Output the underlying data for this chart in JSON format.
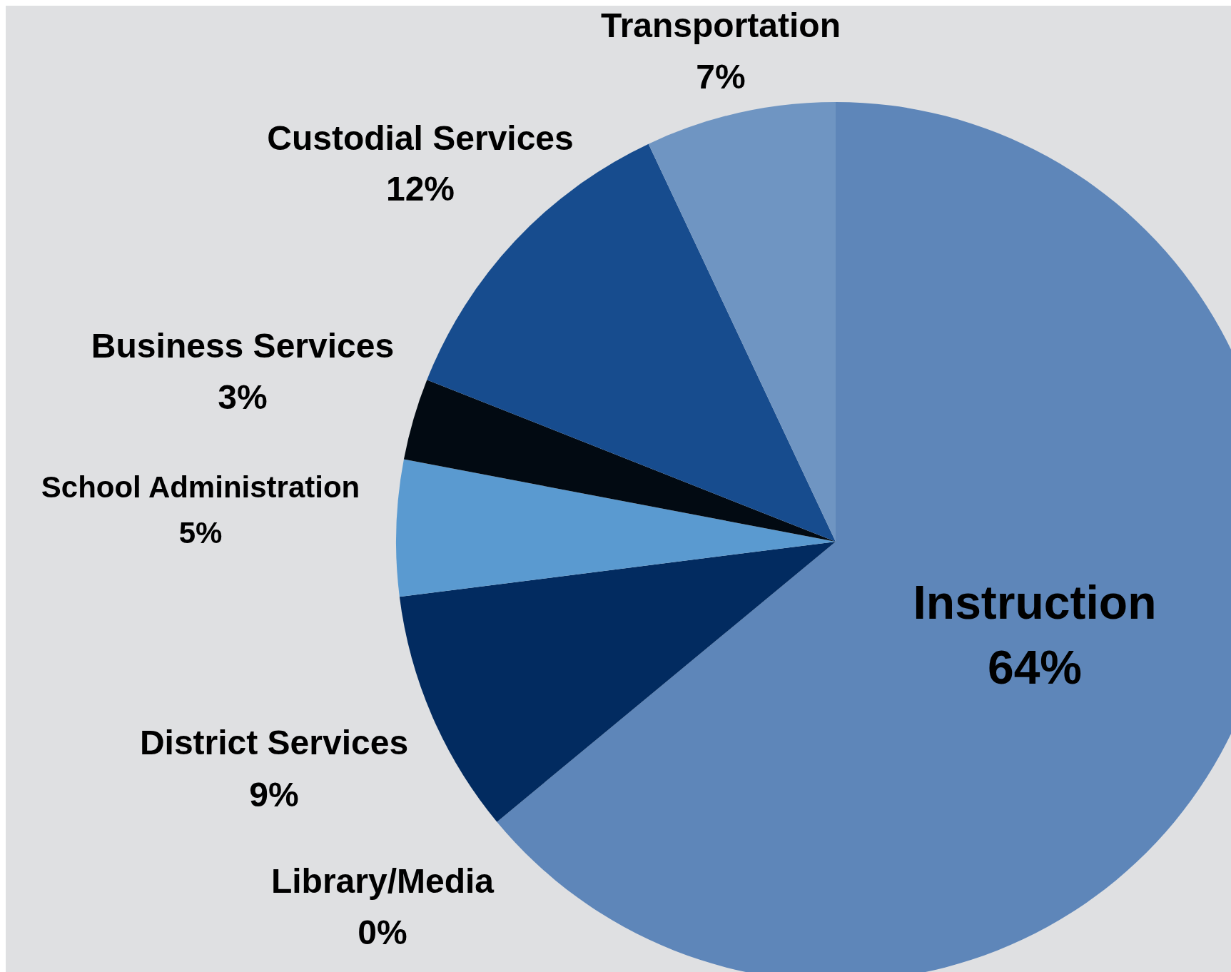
{
  "chart_data": {
    "type": "pie",
    "categories": [
      "Instruction",
      "Library/Media",
      "District Services",
      "School Administration",
      "Business Services",
      "Custodial Services",
      "Transportation"
    ],
    "values": [
      64,
      0,
      9,
      5,
      3,
      12,
      7
    ],
    "colors": [
      "#5e86b9",
      "#a6c4e4",
      "#022b60",
      "#5a9ad0",
      "#020a12",
      "#174c8e",
      "#6f95c2"
    ],
    "value_labels": [
      "64%",
      "0%",
      "9%",
      "5%",
      "3%",
      "12%",
      "7%"
    ]
  }
}
